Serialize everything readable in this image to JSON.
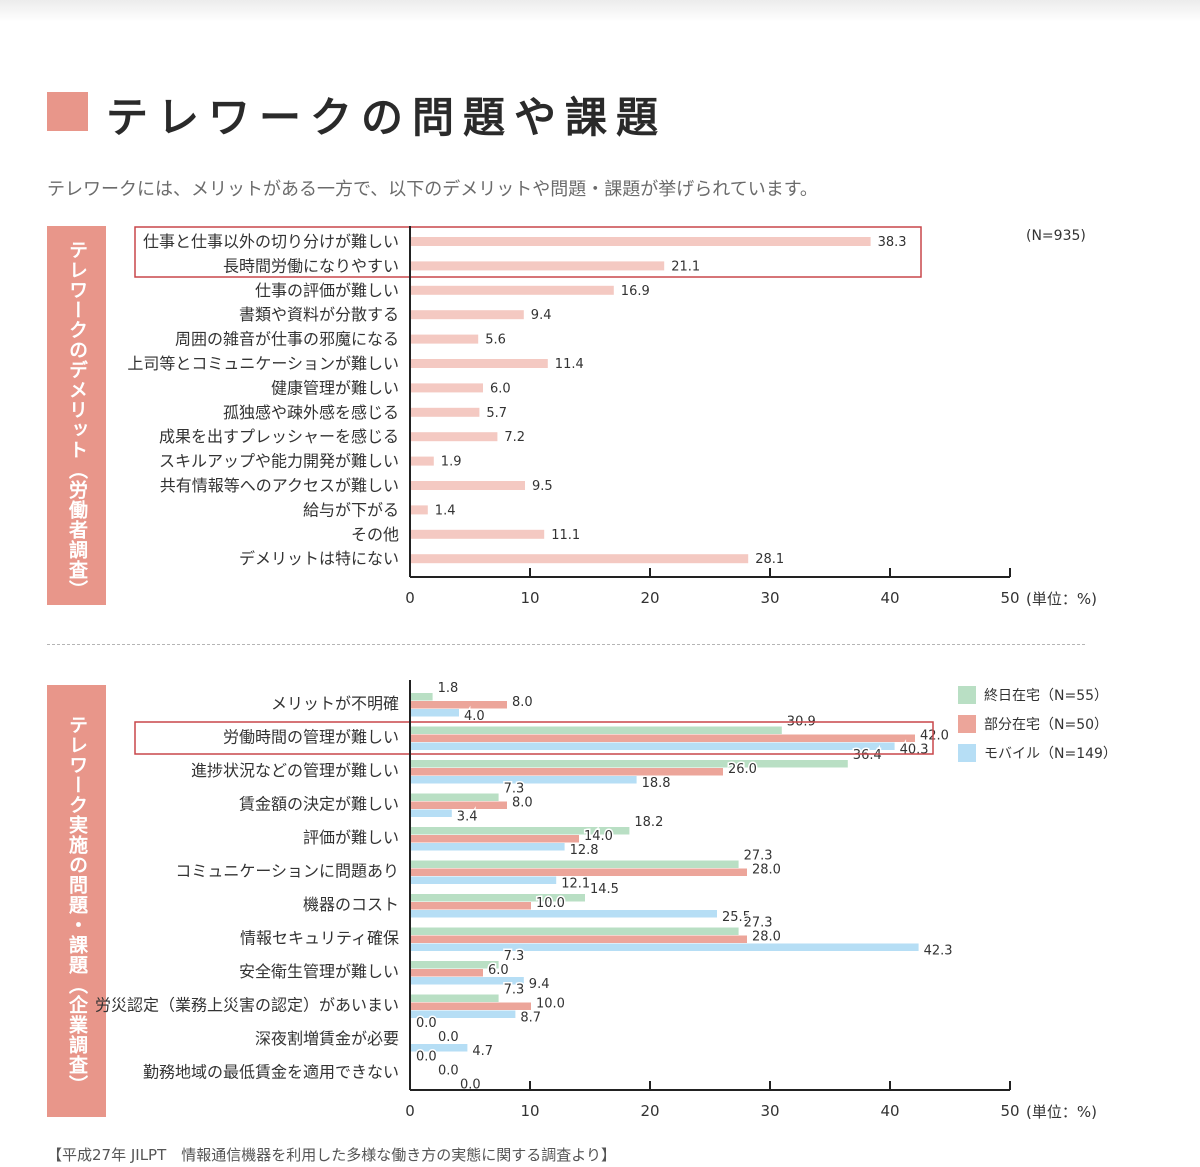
{
  "header": {
    "title": "テレワークの問題や課題",
    "subtitle": "テレワークには、メリットがある一方で、以下のデメリットや問題・課題が挙げられています。"
  },
  "colors": {
    "accent": "#e8968a",
    "highlight_border": "#c9474a"
  },
  "sections": {
    "top_label": "テレワークのデメリット（労働者調査）",
    "bottom_label": "テレワーク実施の問題・課題（企業調査）"
  },
  "top_note": "(N=935)",
  "unit_label": "(単位：%)",
  "footer": "【平成27年 JILPT　情報通信機器を利用した多様な働き方の実態に関する調査より】",
  "chart_data": [
    {
      "type": "bar",
      "orientation": "horizontal",
      "categories": [
        "仕事と仕事以外の切り分けが難しい",
        "長時間労働になりやすい",
        "仕事の評価が難しい",
        "書類や資料が分散する",
        "周囲の雑音が仕事の邪魔になる",
        "上司等とコミュニケーションが難しい",
        "健康管理が難しい",
        "孤独感や疎外感を感じる",
        "成果を出すプレッシャーを感じる",
        "スキルアップや能力開発が難しい",
        "共有情報等へのアクセスが難しい",
        "給与が下がる",
        "その他",
        "デメリットは特にない"
      ],
      "values": [
        38.3,
        21.1,
        16.9,
        9.4,
        5.6,
        11.4,
        6.0,
        5.7,
        7.2,
        1.9,
        9.5,
        1.4,
        11.1,
        28.1
      ],
      "value_labels": [
        "38.3",
        "21.1",
        "16.9",
        "9.4",
        "5.6",
        "11.4",
        "6.0",
        "5.7",
        "7.2",
        "1.9",
        "9.5",
        "1.4",
        "11.1",
        "28.1"
      ],
      "color": "#f4c9c2",
      "xlim": [
        0,
        50
      ],
      "ticks": [
        "0",
        "10",
        "20",
        "30",
        "40",
        "50"
      ],
      "highlighted_categories": [
        0,
        1
      ],
      "grid": false
    },
    {
      "type": "bar",
      "orientation": "horizontal",
      "categories": [
        "メリットが不明確",
        "労働時間の管理が難しい",
        "進捗状況などの管理が難しい",
        "賃金額の決定が難しい",
        "評価が難しい",
        "コミュニケーションに問題あり",
        "機器のコスト",
        "情報セキュリティ確保",
        "安全衛生管理が難しい",
        "労災認定（業務上災害の認定）があいまい",
        "深夜割増賃金が必要",
        "勤務地域の最低賃金を適用できない"
      ],
      "series": [
        {
          "name": "終日在宅（N=55）",
          "color": "#b9dfc4",
          "values": [
            1.8,
            30.9,
            36.4,
            7.3,
            18.2,
            27.3,
            14.5,
            27.3,
            7.3,
            7.3,
            0.0,
            0.0
          ],
          "value_labels": [
            "1.8",
            "30.9",
            "36.4",
            "7.3",
            "18.2",
            "27.3",
            "14.5",
            "27.3",
            "7.3",
            "7.3",
            "0.0",
            "0.0"
          ]
        },
        {
          "name": "部分在宅（N=50）",
          "color": "#eca59a",
          "values": [
            8.0,
            42.0,
            26.0,
            8.0,
            14.0,
            28.0,
            10.0,
            28.0,
            6.0,
            10.0,
            0.0,
            0.0
          ],
          "value_labels": [
            "8.0",
            "42.0",
            "26.0",
            "8.0",
            "14.0",
            "28.0",
            "10.0",
            "28.0",
            "6.0",
            "10.0",
            "0.0",
            "0.0"
          ]
        },
        {
          "name": "モバイル（N=149）",
          "color": "#b6def5",
          "values": [
            4.0,
            40.3,
            18.8,
            3.4,
            12.8,
            12.1,
            25.5,
            42.3,
            9.4,
            8.7,
            4.7,
            0.0
          ],
          "value_labels": [
            "4.0",
            "40.3",
            "18.8",
            "3.4",
            "12.8",
            "12.1",
            "25.5",
            "42.3",
            "9.4",
            "8.7",
            "4.7",
            "0.0"
          ]
        }
      ],
      "xlim": [
        0,
        50
      ],
      "ticks": [
        "0",
        "10",
        "20",
        "30",
        "40",
        "50"
      ],
      "highlighted_categories": [
        1
      ],
      "legend": "top-right",
      "grid": false
    }
  ]
}
